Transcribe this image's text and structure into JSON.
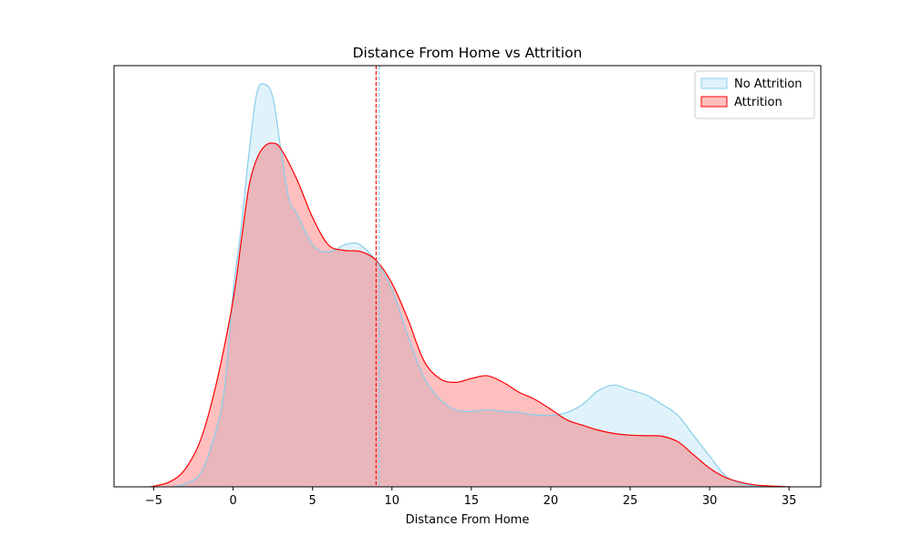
{
  "chart_data": {
    "type": "area",
    "title": "Distance From Home vs Attrition",
    "xlabel": "Distance From Home",
    "ylabel": "",
    "xlim": [
      -7.5,
      37
    ],
    "ylim": [
      0,
      0.0766
    ],
    "xticks": [
      -5,
      0,
      5,
      10,
      15,
      20,
      25,
      30,
      35
    ],
    "y_ticks_shown": false,
    "grid": false,
    "legend_position": "top-right",
    "series": [
      {
        "name": "No Attrition",
        "color": "#87ceeb",
        "fill_color": "#87ceeb",
        "fill_opacity": 0.25,
        "mean_line": 9.2,
        "x": [
          -3.8,
          -3,
          -2,
          -1,
          -0.5,
          0,
          0.5,
          1,
          1.5,
          2,
          2.5,
          3,
          3.5,
          4,
          5,
          6,
          7,
          7.5,
          8,
          9,
          10,
          11,
          12,
          13,
          14,
          15,
          16,
          17,
          18,
          19,
          20,
          21,
          22,
          23,
          24,
          25,
          26,
          27,
          28,
          29,
          30,
          31,
          32,
          33,
          33.9
        ],
        "y": [
          0,
          0.0006,
          0.0027,
          0.011,
          0.019,
          0.0355,
          0.047,
          0.0607,
          0.0717,
          0.0732,
          0.0708,
          0.0615,
          0.0525,
          0.0497,
          0.044,
          0.0427,
          0.044,
          0.0443,
          0.044,
          0.0411,
          0.036,
          0.0275,
          0.02,
          0.016,
          0.014,
          0.0137,
          0.014,
          0.0137,
          0.0135,
          0.0131,
          0.013,
          0.0135,
          0.015,
          0.0175,
          0.0185,
          0.0176,
          0.0167,
          0.015,
          0.013,
          0.0093,
          0.0056,
          0.002,
          0.0006,
          0.0001,
          0
        ]
      },
      {
        "name": "Attrition",
        "color": "#ff0000",
        "fill_color": "#ff0000",
        "fill_opacity": 0.25,
        "mean_line": 9.0,
        "x": [
          -5.2,
          -4,
          -3,
          -2,
          -1,
          0,
          0.5,
          1,
          1.5,
          2,
          2.5,
          3,
          4,
          5,
          6,
          7,
          8,
          9,
          10,
          11,
          12,
          13,
          14,
          15,
          16,
          17,
          18,
          19,
          20,
          21,
          22,
          23,
          24,
          25,
          26,
          27,
          28,
          29,
          30,
          31,
          32,
          33,
          35.1
        ],
        "y": [
          0,
          0.0009,
          0.0033,
          0.0089,
          0.0195,
          0.034,
          0.0445,
          0.0547,
          0.0597,
          0.062,
          0.0625,
          0.0615,
          0.056,
          0.049,
          0.044,
          0.043,
          0.0428,
          0.0412,
          0.037,
          0.0305,
          0.023,
          0.0197,
          0.019,
          0.0197,
          0.0202,
          0.019,
          0.0172,
          0.0159,
          0.0141,
          0.0122,
          0.0112,
          0.0103,
          0.0097,
          0.0094,
          0.0093,
          0.0092,
          0.0082,
          0.0058,
          0.0034,
          0.0017,
          0.0008,
          0.0003,
          0
        ]
      }
    ]
  }
}
